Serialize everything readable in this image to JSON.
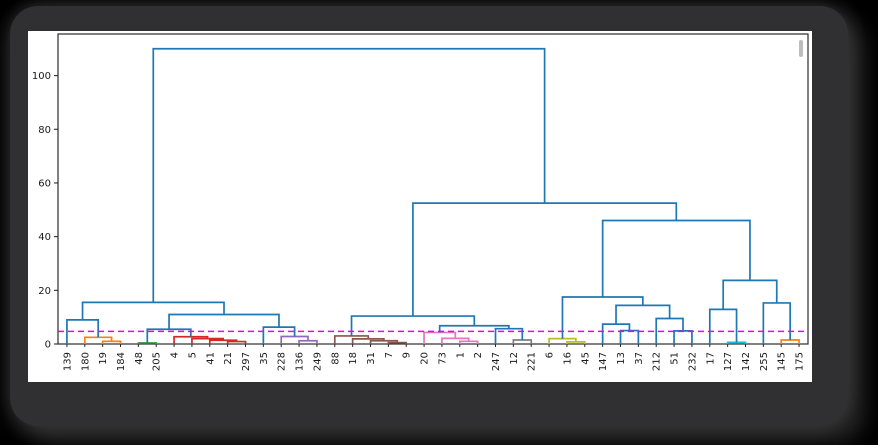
{
  "window": {
    "background_color": "#000000",
    "frame_color": "#303032",
    "panel_color": "#ffffff",
    "scrollbar_visible": true
  },
  "chart_data": {
    "type": "dendrogram",
    "title": "",
    "xlabel": "",
    "ylabel": "",
    "orientation": "top",
    "grid": false,
    "legend": null,
    "y_axis": {
      "ticks": [
        0,
        20,
        40,
        60,
        80,
        100
      ],
      "min": 0,
      "max": 115.5
    },
    "threshold_line": {
      "value": 4.7,
      "color": "#ee00ee",
      "style": "dashed"
    },
    "axis_color": "#2b2b2b",
    "tick_label_color": "#1a1a1a",
    "link_palette": {
      "blue": "#1f77b4",
      "orange": "#ff7f0e",
      "green": "#2ca02c",
      "red": "#d62728",
      "purple": "#9467bd",
      "brown": "#8c564b",
      "pink": "#e377c2",
      "gray": "#7f7f7f",
      "olive": "#bcbd22",
      "cyan": "#17becf"
    },
    "leaf_labels": [
      "139",
      "180",
      "19",
      "184",
      "48",
      "205",
      "4",
      "5",
      "41",
      "21",
      "297",
      "35",
      "228",
      "136",
      "249",
      "88",
      "18",
      "31",
      "7",
      "9",
      "20",
      "73",
      "1",
      "2",
      "247",
      "12",
      "221",
      "6",
      "16",
      "45",
      "147",
      "13",
      "37",
      "212",
      "51",
      "232",
      "17",
      "127",
      "142",
      "255",
      "145",
      "175"
    ],
    "tree": {
      "h": 110.0,
      "c": "blue",
      "ch": [
        {
          "h": 15.5,
          "c": "blue",
          "ch": [
            {
              "h": 9.0,
              "c": "blue",
              "ch": [
                {
                  "l": "139"
                },
                {
                  "h": 2.5,
                  "c": "orange",
                  "ch": [
                    {
                      "l": "180"
                    },
                    {
                      "h": 1.0,
                      "c": "orange",
                      "ch": [
                        {
                          "l": "19"
                        },
                        {
                          "l": "184"
                        }
                      ]
                    }
                  ]
                }
              ]
            },
            {
              "h": 11.0,
              "c": "blue",
              "ch": [
                {
                  "h": 5.5,
                  "c": "blue",
                  "ch": [
                    {
                      "h": 0.4,
                      "c": "green",
                      "ch": [
                        {
                          "l": "48"
                        },
                        {
                          "l": "205"
                        }
                      ]
                    },
                    {
                      "h": 2.7,
                      "c": "red",
                      "ch": [
                        {
                          "l": "4"
                        },
                        {
                          "h": 2.0,
                          "c": "red",
                          "ch": [
                            {
                              "l": "5"
                            },
                            {
                              "h": 1.4,
                              "c": "red",
                              "ch": [
                                {
                                  "l": "41"
                                },
                                {
                                  "h": 0.9,
                                  "c": "red",
                                  "ch": [
                                    {
                                      "l": "21"
                                    },
                                    {
                                      "l": "297"
                                    }
                                  ]
                                }
                              ]
                            }
                          ]
                        }
                      ]
                    }
                  ]
                },
                {
                  "h": 6.3,
                  "c": "blue",
                  "ch": [
                    {
                      "l": "35"
                    },
                    {
                      "h": 2.8,
                      "c": "purple",
                      "ch": [
                        {
                          "l": "228"
                        },
                        {
                          "h": 1.2,
                          "c": "purple",
                          "ch": [
                            {
                              "l": "136"
                            },
                            {
                              "l": "249"
                            }
                          ]
                        }
                      ]
                    }
                  ]
                }
              ]
            }
          ]
        },
        {
          "h": 52.5,
          "c": "blue",
          "ch": [
            {
              "h": 10.4,
              "c": "blue",
              "ch": [
                {
                  "h": 3.0,
                  "c": "brown",
                  "ch": [
                    {
                      "l": "88"
                    },
                    {
                      "h": 1.9,
                      "c": "brown",
                      "ch": [
                        {
                          "l": "18"
                        },
                        {
                          "h": 1.2,
                          "c": "brown",
                          "ch": [
                            {
                              "l": "31"
                            },
                            {
                              "h": 0.5,
                              "c": "brown",
                              "ch": [
                                {
                                  "l": "7"
                                },
                                {
                                  "l": "9"
                                }
                              ]
                            }
                          ]
                        }
                      ]
                    }
                  ]
                },
                {
                  "h": 6.8,
                  "c": "blue",
                  "ch": [
                    {
                      "h": 4.3,
                      "c": "pink",
                      "ch": [
                        {
                          "l": "20"
                        },
                        {
                          "h": 2.1,
                          "c": "pink",
                          "ch": [
                            {
                              "l": "73"
                            },
                            {
                              "h": 1.0,
                              "c": "pink",
                              "ch": [
                                {
                                  "l": "1"
                                },
                                {
                                  "l": "2"
                                }
                              ]
                            }
                          ]
                        }
                      ]
                    },
                    {
                      "h": 5.7,
                      "c": "blue",
                      "ch": [
                        {
                          "l": "247"
                        },
                        {
                          "h": 1.5,
                          "c": "gray",
                          "ch": [
                            {
                              "l": "12"
                            },
                            {
                              "l": "221"
                            }
                          ]
                        }
                      ]
                    }
                  ]
                }
              ]
            },
            {
              "h": 46.0,
              "c": "blue",
              "ch": [
                {
                  "h": 17.5,
                  "c": "blue",
                  "ch": [
                    {
                      "h": 2.0,
                      "c": "olive",
                      "ch": [
                        {
                          "l": "6"
                        },
                        {
                          "h": 0.8,
                          "c": "olive",
                          "ch": [
                            {
                              "l": "16"
                            },
                            {
                              "l": "45"
                            }
                          ]
                        }
                      ]
                    },
                    {
                      "h": 14.4,
                      "c": "blue",
                      "ch": [
                        {
                          "h": 7.4,
                          "c": "blue",
                          "ch": [
                            {
                              "l": "147"
                            },
                            {
                              "h": 5.0,
                              "c": "blue",
                              "ch": [
                                {
                                  "l": "13"
                                },
                                {
                                  "l": "37"
                                }
                              ]
                            }
                          ]
                        },
                        {
                          "h": 9.5,
                          "c": "blue",
                          "ch": [
                            {
                              "l": "212"
                            },
                            {
                              "h": 4.9,
                              "c": "blue",
                              "ch": [
                                {
                                  "l": "51"
                                },
                                {
                                  "l": "232"
                                }
                              ]
                            }
                          ]
                        }
                      ]
                    }
                  ]
                },
                {
                  "h": 23.7,
                  "c": "blue",
                  "ch": [
                    {
                      "h": 12.9,
                      "c": "blue",
                      "ch": [
                        {
                          "l": "17"
                        },
                        {
                          "h": 0.6,
                          "c": "cyan",
                          "ch": [
                            {
                              "l": "127"
                            },
                            {
                              "l": "142"
                            }
                          ]
                        }
                      ]
                    },
                    {
                      "h": 15.3,
                      "c": "blue",
                      "ch": [
                        {
                          "l": "255"
                        },
                        {
                          "h": 1.5,
                          "c": "orange",
                          "ch": [
                            {
                              "l": "145"
                            },
                            {
                              "l": "175"
                            }
                          ]
                        }
                      ]
                    }
                  ]
                }
              ]
            }
          ]
        }
      ]
    }
  }
}
